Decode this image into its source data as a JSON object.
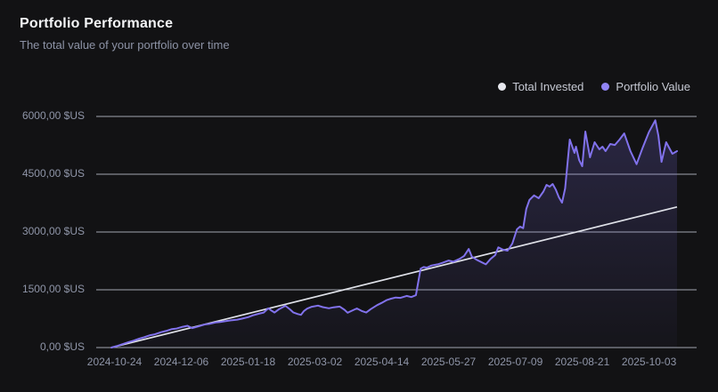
{
  "page": {
    "title": "Portfolio Performance",
    "subtitle": "The total value of your portfolio over time"
  },
  "legend": [
    {
      "label": "Total Invested",
      "color": "#e7e8ee"
    },
    {
      "label": "Portfolio Value",
      "color": "#9184f4"
    }
  ],
  "colors": {
    "background": "#121214",
    "grid": "#b3b7c2",
    "axis_text": "#8f95a8",
    "invested_line": "#dfe1e8",
    "portfolio_line": "#8172ec",
    "area_fill": "#8172ec"
  },
  "chart_data": {
    "type": "line",
    "title": "Portfolio Performance",
    "subtitle": "The total value of your portfolio over time",
    "unit": "$US",
    "grid": "horizontal",
    "legend_position": "top-right",
    "x_axis": {
      "start_date": "2024-10-22",
      "total_days": 364,
      "tick_labels": [
        "2024-10-24",
        "2024-12-06",
        "2025-01-18",
        "2025-03-02",
        "2025-04-14",
        "2025-05-27",
        "2025-07-09",
        "2025-08-21",
        "2025-10-03"
      ],
      "tick_days": [
        2,
        45,
        88,
        131,
        174,
        217,
        260,
        303,
        346
      ]
    },
    "y_axis": {
      "min": 0,
      "max": 6000,
      "ticks": [
        {
          "value": 0,
          "label": "0,00 $US"
        },
        {
          "value": 1500,
          "label": "1500,00 $US"
        },
        {
          "value": 3000,
          "label": "3000,00 $US"
        },
        {
          "value": 4500,
          "label": "4500,00 $US"
        },
        {
          "value": 6000,
          "label": "6000,00 $US"
        }
      ]
    },
    "series": [
      {
        "name": "Total Invested",
        "style": "straight",
        "points": [
          [
            0,
            0
          ],
          [
            364,
            3650
          ]
        ]
      },
      {
        "name": "Portfolio Value",
        "style": "jagged-area",
        "points": [
          [
            0,
            0
          ],
          [
            4,
            45
          ],
          [
            7,
            85
          ],
          [
            11,
            140
          ],
          [
            14,
            175
          ],
          [
            18,
            230
          ],
          [
            21,
            265
          ],
          [
            25,
            320
          ],
          [
            28,
            345
          ],
          [
            32,
            400
          ],
          [
            35,
            430
          ],
          [
            39,
            480
          ],
          [
            42,
            495
          ],
          [
            46,
            540
          ],
          [
            49,
            565
          ],
          [
            52,
            505
          ],
          [
            56,
            550
          ],
          [
            60,
            600
          ],
          [
            63,
            615
          ],
          [
            67,
            650
          ],
          [
            70,
            665
          ],
          [
            74,
            690
          ],
          [
            77,
            705
          ],
          [
            81,
            725
          ],
          [
            84,
            750
          ],
          [
            88,
            790
          ],
          [
            91,
            835
          ],
          [
            95,
            880
          ],
          [
            98,
            910
          ],
          [
            101,
            1020
          ],
          [
            103,
            960
          ],
          [
            105,
            910
          ],
          [
            108,
            1000
          ],
          [
            112,
            1085
          ],
          [
            115,
            990
          ],
          [
            117,
            915
          ],
          [
            120,
            870
          ],
          [
            122,
            850
          ],
          [
            124,
            950
          ],
          [
            126,
            1010
          ],
          [
            129,
            1060
          ],
          [
            133,
            1090
          ],
          [
            136,
            1050
          ],
          [
            140,
            1020
          ],
          [
            143,
            1045
          ],
          [
            147,
            1065
          ],
          [
            150,
            980
          ],
          [
            152,
            905
          ],
          [
            155,
            960
          ],
          [
            158,
            1015
          ],
          [
            161,
            950
          ],
          [
            164,
            910
          ],
          [
            167,
            1000
          ],
          [
            171,
            1100
          ],
          [
            174,
            1160
          ],
          [
            177,
            1230
          ],
          [
            180,
            1270
          ],
          [
            183,
            1300
          ],
          [
            186,
            1290
          ],
          [
            190,
            1340
          ],
          [
            193,
            1310
          ],
          [
            196,
            1360
          ],
          [
            199,
            2050
          ],
          [
            201,
            2090
          ],
          [
            203,
            2075
          ],
          [
            206,
            2130
          ],
          [
            210,
            2160
          ],
          [
            213,
            2200
          ],
          [
            217,
            2260
          ],
          [
            220,
            2230
          ],
          [
            224,
            2300
          ],
          [
            227,
            2380
          ],
          [
            230,
            2560
          ],
          [
            232,
            2360
          ],
          [
            235,
            2280
          ],
          [
            238,
            2220
          ],
          [
            241,
            2160
          ],
          [
            244,
            2300
          ],
          [
            247,
            2400
          ],
          [
            249,
            2600
          ],
          [
            252,
            2540
          ],
          [
            255,
            2515
          ],
          [
            258,
            2700
          ],
          [
            261,
            3070
          ],
          [
            263,
            3140
          ],
          [
            265,
            3100
          ],
          [
            267,
            3600
          ],
          [
            269,
            3830
          ],
          [
            272,
            3950
          ],
          [
            275,
            3877
          ],
          [
            278,
            4050
          ],
          [
            280,
            4223
          ],
          [
            282,
            4177
          ],
          [
            284,
            4246
          ],
          [
            286,
            4100
          ],
          [
            288,
            3900
          ],
          [
            290,
            3762
          ],
          [
            292,
            4130
          ],
          [
            295,
            5400
          ],
          [
            298,
            5054
          ],
          [
            299,
            5215
          ],
          [
            301,
            4870
          ],
          [
            303,
            4708
          ],
          [
            305,
            5608
          ],
          [
            308,
            4938
          ],
          [
            311,
            5331
          ],
          [
            314,
            5146
          ],
          [
            316,
            5215
          ],
          [
            318,
            5100
          ],
          [
            321,
            5285
          ],
          [
            324,
            5260
          ],
          [
            327,
            5400
          ],
          [
            330,
            5560
          ],
          [
            334,
            5100
          ],
          [
            338,
            4760
          ],
          [
            342,
            5200
          ],
          [
            346,
            5600
          ],
          [
            350,
            5900
          ],
          [
            352,
            5500
          ],
          [
            354,
            4820
          ],
          [
            357,
            5330
          ],
          [
            361,
            5030
          ],
          [
            364,
            5100
          ]
        ]
      }
    ]
  }
}
